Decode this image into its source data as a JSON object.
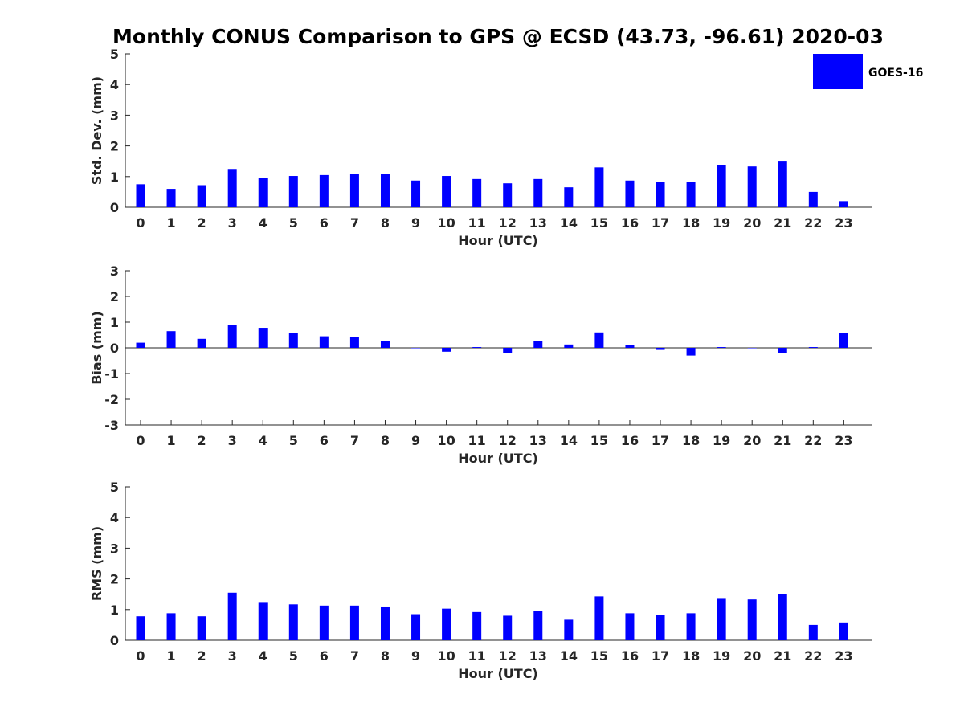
{
  "title": "Monthly CONUS Comparison to GPS @ ECSD (43.73, -96.61) 2020-03",
  "legend": {
    "label": "GOES-16",
    "color": "#0000ff"
  },
  "bar_color": "#0000ff",
  "chart_data": [
    {
      "id": "std",
      "type": "bar",
      "title": "Monthly CONUS Comparison to GPS @ ECSD (43.73, -96.61) 2020-03",
      "xlabel": "Hour (UTC)",
      "ylabel": "Std. Dev. (mm)",
      "ylim": [
        0,
        5
      ],
      "yticks": [
        "0",
        "1",
        "2",
        "3",
        "4",
        "5"
      ],
      "categories": [
        "0",
        "1",
        "2",
        "3",
        "4",
        "5",
        "6",
        "7",
        "8",
        "9",
        "10",
        "11",
        "12",
        "13",
        "14",
        "15",
        "16",
        "17",
        "18",
        "19",
        "20",
        "21",
        "22",
        "23"
      ],
      "series": [
        {
          "name": "GOES-16",
          "values": [
            0.75,
            0.6,
            0.72,
            1.25,
            0.95,
            1.02,
            1.05,
            1.08,
            1.08,
            0.87,
            1.02,
            0.92,
            0.78,
            0.92,
            0.65,
            1.3,
            0.87,
            0.82,
            0.82,
            1.37,
            1.33,
            1.49,
            0.5,
            0.2
          ]
        }
      ]
    },
    {
      "id": "bias",
      "type": "bar",
      "xlabel": "Hour (UTC)",
      "ylabel": "Bias (mm)",
      "ylim": [
        -3,
        3
      ],
      "yticks": [
        "-3",
        "-2",
        "-1",
        "0",
        "1",
        "2",
        "3"
      ],
      "categories": [
        "0",
        "1",
        "2",
        "3",
        "4",
        "5",
        "6",
        "7",
        "8",
        "9",
        "10",
        "11",
        "12",
        "13",
        "14",
        "15",
        "16",
        "17",
        "18",
        "19",
        "20",
        "21",
        "22",
        "23"
      ],
      "series": [
        {
          "name": "GOES-16",
          "values": [
            0.2,
            0.65,
            0.35,
            0.88,
            0.78,
            0.58,
            0.45,
            0.42,
            0.28,
            0.0,
            -0.15,
            0.03,
            -0.2,
            0.25,
            0.13,
            0.6,
            0.1,
            -0.08,
            -0.3,
            0.03,
            0.0,
            -0.2,
            0.03,
            0.58
          ]
        }
      ]
    },
    {
      "id": "rms",
      "type": "bar",
      "xlabel": "Hour (UTC)",
      "ylabel": "RMS (mm)",
      "ylim": [
        0,
        5
      ],
      "yticks": [
        "0",
        "1",
        "2",
        "3",
        "4",
        "5"
      ],
      "categories": [
        "0",
        "1",
        "2",
        "3",
        "4",
        "5",
        "6",
        "7",
        "8",
        "9",
        "10",
        "11",
        "12",
        "13",
        "14",
        "15",
        "16",
        "17",
        "18",
        "19",
        "20",
        "21",
        "22",
        "23"
      ],
      "series": [
        {
          "name": "GOES-16",
          "values": [
            0.78,
            0.88,
            0.78,
            1.55,
            1.22,
            1.17,
            1.13,
            1.13,
            1.1,
            0.85,
            1.03,
            0.92,
            0.8,
            0.95,
            0.67,
            1.43,
            0.88,
            0.82,
            0.88,
            1.35,
            1.33,
            1.5,
            0.5,
            0.58
          ]
        }
      ]
    }
  ]
}
